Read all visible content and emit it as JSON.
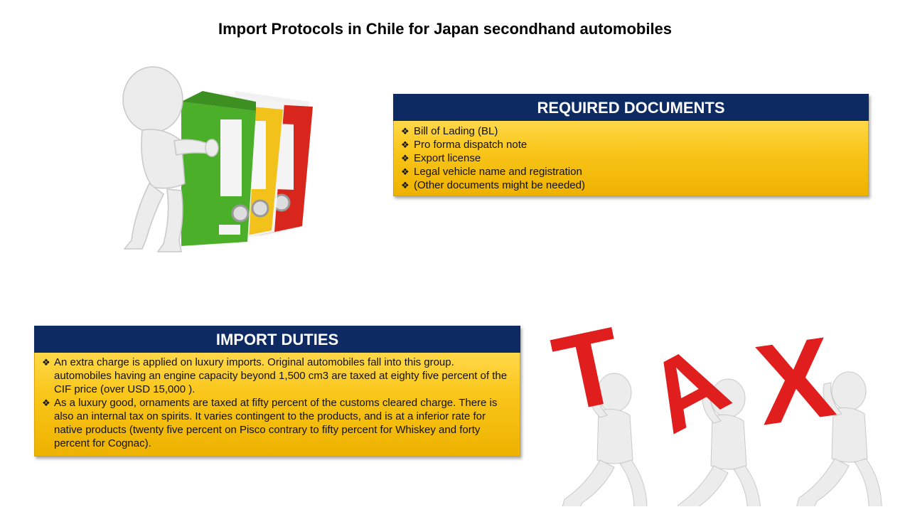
{
  "title": "Import Protocols in Chile for Japan secondhand automobiles",
  "required_documents": {
    "heading": "REQUIRED DOCUMENTS",
    "bullet": "❖",
    "items": [
      "Bill of Lading (BL)",
      "Pro forma dispatch note",
      "Export license",
      "Legal vehicle name and registration",
      "(Other documents might be needed)"
    ]
  },
  "import_duties": {
    "heading": "IMPORT DUTIES",
    "bullet": "❖",
    "items": [
      "An extra charge is applied on luxury imports. Original automobiles fall into this group. automobiles having an engine capacity beyond 1,500 cm3 are taxed at eighty five percent of the CIF price (over USD 15,000 ).",
      "As a luxury good, ornaments are taxed at fifty percent of the customs cleared charge. There is also an internal tax on spirits. It varies contingent to the products, and is at a inferior rate for native products (twenty five percent on Pisco contrary to fifty percent for Whiskey and forty percent for Cognac)."
    ]
  },
  "tax_illustration": {
    "letters": [
      "T",
      "A",
      "X"
    ]
  },
  "colors": {
    "header_navy": "#0e2a63",
    "panel_gold": "#f9c61a",
    "binder_green": "#4caf2a",
    "binder_yellow": "#f2c21a",
    "binder_red": "#d9261c",
    "tax_red": "#e01e1e"
  }
}
